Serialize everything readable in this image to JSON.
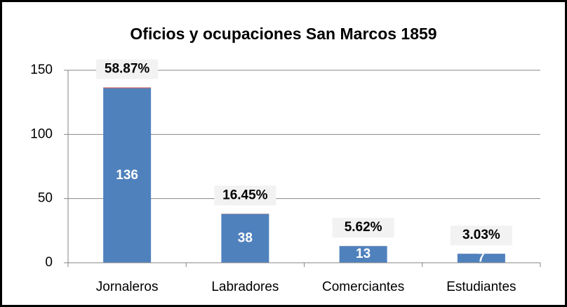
{
  "chart_data": {
    "type": "bar",
    "stacked": true,
    "title": "Oficios y ocupaciones San Marcos 1859",
    "categories": [
      "Jornaleros",
      "Labradores",
      "Comerciantes",
      "Estudiantes"
    ],
    "series": [
      {
        "color": "#4f81bd",
        "values": [
          136,
          38,
          13,
          7
        ]
      },
      {
        "color": "#c0504d",
        "values": [
          0.5887,
          0.1645,
          0.0562,
          0.0303
        ],
        "value_labels": [
          "58.87%",
          "16.45%",
          "5.62%",
          "3.03%"
        ]
      }
    ],
    "ylim": [
      0,
      150
    ],
    "yticks": [
      0,
      50,
      100,
      150
    ],
    "grid": true
  }
}
